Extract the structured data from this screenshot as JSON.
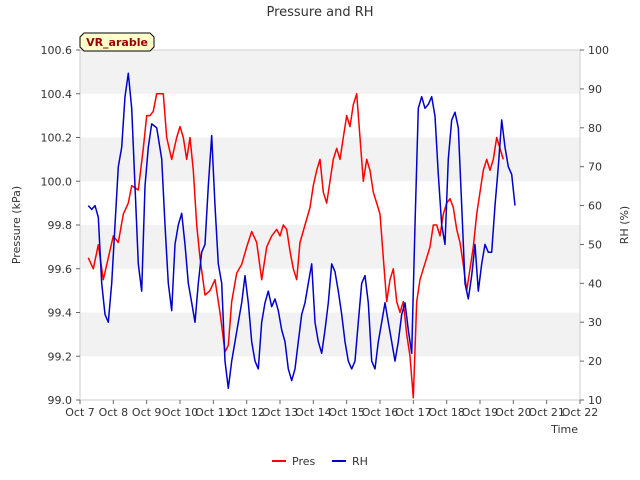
{
  "chart_data": {
    "type": "line",
    "title": "Pressure and RH",
    "xlabel": "Time",
    "ylabel": "Pressure (kPa)",
    "y2label": "RH (%)",
    "badge": "VR_arable",
    "x_ticks": [
      "Oct 7",
      "Oct 8",
      "Oct 9",
      "Oct 10",
      "Oct 11",
      "Oct 12",
      "Oct 13",
      "Oct 14",
      "Oct 15",
      "Oct 16",
      "Oct 17",
      "Oct 18",
      "Oct 19",
      "Oct 20",
      "Oct 21",
      "Oct 22"
    ],
    "xlim": [
      7,
      22
    ],
    "ylim": [
      99.0,
      100.6
    ],
    "y_ticks": [
      "99.0",
      "99.2",
      "99.4",
      "99.6",
      "99.8",
      "100.0",
      "100.2",
      "100.4",
      "100.6"
    ],
    "y2lim": [
      10,
      100
    ],
    "y2_ticks": [
      "10",
      "20",
      "30",
      "40",
      "50",
      "60",
      "70",
      "80",
      "90",
      "100"
    ],
    "colors": {
      "Pres": "#ff0000",
      "RH": "#0000cc",
      "band": "#f2f2f2"
    },
    "series": [
      {
        "name": "Pres",
        "axis": "left",
        "points": [
          [
            7.25,
            99.65
          ],
          [
            7.4,
            99.6
          ],
          [
            7.55,
            99.71
          ],
          [
            7.7,
            99.55
          ],
          [
            7.85,
            99.65
          ],
          [
            8.0,
            99.75
          ],
          [
            8.15,
            99.72
          ],
          [
            8.3,
            99.85
          ],
          [
            8.45,
            99.9
          ],
          [
            8.55,
            99.98
          ],
          [
            8.75,
            99.96
          ],
          [
            8.9,
            100.15
          ],
          [
            9.0,
            100.3
          ],
          [
            9.1,
            100.3
          ],
          [
            9.2,
            100.32
          ],
          [
            9.3,
            100.4
          ],
          [
            9.5,
            100.4
          ],
          [
            9.6,
            100.2
          ],
          [
            9.75,
            100.1
          ],
          [
            9.9,
            100.2
          ],
          [
            10.0,
            100.25
          ],
          [
            10.1,
            100.2
          ],
          [
            10.2,
            100.1
          ],
          [
            10.3,
            100.2
          ],
          [
            10.4,
            100.05
          ],
          [
            10.5,
            99.8
          ],
          [
            10.6,
            99.65
          ],
          [
            10.75,
            99.48
          ],
          [
            10.9,
            99.5
          ],
          [
            11.05,
            99.55
          ],
          [
            11.2,
            99.4
          ],
          [
            11.35,
            99.22
          ],
          [
            11.45,
            99.25
          ],
          [
            11.55,
            99.45
          ],
          [
            11.7,
            99.58
          ],
          [
            11.85,
            99.62
          ],
          [
            12.0,
            99.7
          ],
          [
            12.15,
            99.77
          ],
          [
            12.3,
            99.72
          ],
          [
            12.45,
            99.55
          ],
          [
            12.6,
            99.7
          ],
          [
            12.75,
            99.75
          ],
          [
            12.9,
            99.78
          ],
          [
            13.0,
            99.75
          ],
          [
            13.1,
            99.8
          ],
          [
            13.2,
            99.78
          ],
          [
            13.3,
            99.68
          ],
          [
            13.4,
            99.6
          ],
          [
            13.5,
            99.55
          ],
          [
            13.6,
            99.72
          ],
          [
            13.75,
            99.8
          ],
          [
            13.9,
            99.88
          ],
          [
            14.0,
            99.98
          ],
          [
            14.1,
            100.05
          ],
          [
            14.2,
            100.1
          ],
          [
            14.3,
            99.95
          ],
          [
            14.4,
            99.9
          ],
          [
            14.5,
            100.0
          ],
          [
            14.6,
            100.1
          ],
          [
            14.7,
            100.15
          ],
          [
            14.8,
            100.1
          ],
          [
            14.9,
            100.2
          ],
          [
            15.0,
            100.3
          ],
          [
            15.1,
            100.25
          ],
          [
            15.2,
            100.35
          ],
          [
            15.3,
            100.4
          ],
          [
            15.4,
            100.2
          ],
          [
            15.5,
            100.0
          ],
          [
            15.6,
            100.1
          ],
          [
            15.7,
            100.05
          ],
          [
            15.8,
            99.95
          ],
          [
            15.9,
            99.9
          ],
          [
            16.0,
            99.85
          ],
          [
            16.1,
            99.65
          ],
          [
            16.2,
            99.45
          ],
          [
            16.3,
            99.55
          ],
          [
            16.4,
            99.6
          ],
          [
            16.5,
            99.45
          ],
          [
            16.6,
            99.4
          ],
          [
            16.7,
            99.45
          ],
          [
            16.8,
            99.3
          ],
          [
            16.9,
            99.2
          ],
          [
            17.0,
            99.01
          ],
          [
            17.1,
            99.45
          ],
          [
            17.2,
            99.55
          ],
          [
            17.3,
            99.6
          ],
          [
            17.4,
            99.65
          ],
          [
            17.5,
            99.7
          ],
          [
            17.6,
            99.8
          ],
          [
            17.7,
            99.8
          ],
          [
            17.8,
            99.75
          ],
          [
            17.9,
            99.85
          ],
          [
            18.0,
            99.9
          ],
          [
            18.1,
            99.92
          ],
          [
            18.2,
            99.88
          ],
          [
            18.3,
            99.78
          ],
          [
            18.4,
            99.72
          ],
          [
            18.5,
            99.62
          ],
          [
            18.6,
            99.5
          ],
          [
            18.7,
            99.6
          ],
          [
            18.8,
            99.7
          ],
          [
            18.9,
            99.85
          ],
          [
            19.0,
            99.95
          ],
          [
            19.1,
            100.05
          ],
          [
            19.2,
            100.1
          ],
          [
            19.3,
            100.05
          ],
          [
            19.4,
            100.1
          ],
          [
            19.5,
            100.2
          ],
          [
            19.6,
            100.15
          ],
          [
            19.7,
            100.1
          ]
        ]
      },
      {
        "name": "RH",
        "axis": "right",
        "points": [
          [
            7.25,
            60
          ],
          [
            7.35,
            59
          ],
          [
            7.45,
            60
          ],
          [
            7.55,
            57
          ],
          [
            7.65,
            40
          ],
          [
            7.75,
            32
          ],
          [
            7.85,
            30
          ],
          [
            7.95,
            40
          ],
          [
            8.05,
            55
          ],
          [
            8.15,
            70
          ],
          [
            8.25,
            75
          ],
          [
            8.35,
            88
          ],
          [
            8.45,
            94
          ],
          [
            8.55,
            85
          ],
          [
            8.65,
            65
          ],
          [
            8.75,
            45
          ],
          [
            8.85,
            38
          ],
          [
            8.95,
            65
          ],
          [
            9.05,
            75
          ],
          [
            9.15,
            81
          ],
          [
            9.3,
            80
          ],
          [
            9.45,
            72
          ],
          [
            9.55,
            55
          ],
          [
            9.65,
            40
          ],
          [
            9.75,
            33
          ],
          [
            9.85,
            50
          ],
          [
            9.95,
            55
          ],
          [
            10.05,
            58
          ],
          [
            10.15,
            50
          ],
          [
            10.25,
            40
          ],
          [
            10.35,
            35
          ],
          [
            10.45,
            30
          ],
          [
            10.55,
            40
          ],
          [
            10.65,
            48
          ],
          [
            10.75,
            50
          ],
          [
            10.85,
            65
          ],
          [
            10.95,
            78
          ],
          [
            11.05,
            60
          ],
          [
            11.15,
            45
          ],
          [
            11.25,
            40
          ],
          [
            11.35,
            20
          ],
          [
            11.45,
            13
          ],
          [
            11.55,
            20
          ],
          [
            11.65,
            25
          ],
          [
            11.75,
            30
          ],
          [
            11.85,
            35
          ],
          [
            11.95,
            42
          ],
          [
            12.05,
            35
          ],
          [
            12.15,
            25
          ],
          [
            12.25,
            20
          ],
          [
            12.35,
            18
          ],
          [
            12.45,
            30
          ],
          [
            12.55,
            35
          ],
          [
            12.65,
            38
          ],
          [
            12.75,
            34
          ],
          [
            12.85,
            36
          ],
          [
            12.95,
            33
          ],
          [
            13.05,
            28
          ],
          [
            13.15,
            25
          ],
          [
            13.25,
            18
          ],
          [
            13.35,
            15
          ],
          [
            13.45,
            18
          ],
          [
            13.55,
            25
          ],
          [
            13.65,
            32
          ],
          [
            13.75,
            35
          ],
          [
            13.85,
            40
          ],
          [
            13.95,
            45
          ],
          [
            14.05,
            30
          ],
          [
            14.15,
            25
          ],
          [
            14.25,
            22
          ],
          [
            14.35,
            28
          ],
          [
            14.45,
            35
          ],
          [
            14.55,
            45
          ],
          [
            14.65,
            43
          ],
          [
            14.75,
            38
          ],
          [
            14.85,
            32
          ],
          [
            14.95,
            25
          ],
          [
            15.05,
            20
          ],
          [
            15.15,
            18
          ],
          [
            15.25,
            20
          ],
          [
            15.35,
            30
          ],
          [
            15.45,
            40
          ],
          [
            15.55,
            42
          ],
          [
            15.65,
            35
          ],
          [
            15.75,
            20
          ],
          [
            15.85,
            18
          ],
          [
            15.95,
            25
          ],
          [
            16.05,
            30
          ],
          [
            16.15,
            35
          ],
          [
            16.25,
            30
          ],
          [
            16.35,
            25
          ],
          [
            16.45,
            20
          ],
          [
            16.55,
            25
          ],
          [
            16.65,
            32
          ],
          [
            16.75,
            35
          ],
          [
            16.85,
            28
          ],
          [
            16.95,
            22
          ],
          [
            17.05,
            55
          ],
          [
            17.15,
            85
          ],
          [
            17.25,
            88
          ],
          [
            17.35,
            85
          ],
          [
            17.45,
            86
          ],
          [
            17.55,
            88
          ],
          [
            17.65,
            83
          ],
          [
            17.75,
            68
          ],
          [
            17.85,
            55
          ],
          [
            17.95,
            50
          ],
          [
            18.05,
            72
          ],
          [
            18.15,
            82
          ],
          [
            18.25,
            84
          ],
          [
            18.35,
            80
          ],
          [
            18.45,
            60
          ],
          [
            18.55,
            40
          ],
          [
            18.65,
            36
          ],
          [
            18.75,
            42
          ],
          [
            18.85,
            50
          ],
          [
            18.95,
            38
          ],
          [
            19.05,
            45
          ],
          [
            19.15,
            50
          ],
          [
            19.25,
            48
          ],
          [
            19.35,
            48
          ],
          [
            19.45,
            60
          ],
          [
            19.55,
            70
          ],
          [
            19.65,
            82
          ],
          [
            19.75,
            75
          ],
          [
            19.85,
            70
          ],
          [
            19.95,
            68
          ],
          [
            20.05,
            60
          ]
        ]
      }
    ],
    "legend": [
      {
        "name": "Pres",
        "label": "Pres"
      },
      {
        "name": "RH",
        "label": "RH"
      }
    ]
  }
}
